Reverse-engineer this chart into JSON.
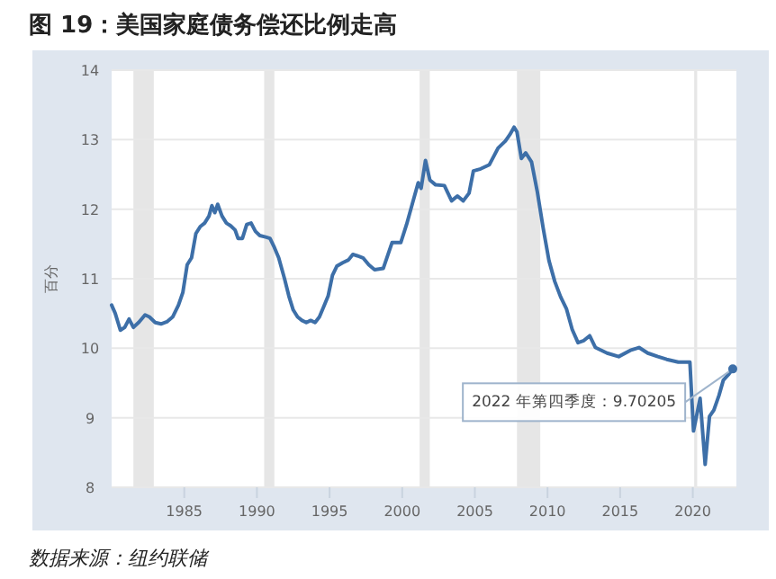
{
  "chart_data": {
    "type": "line",
    "title": "图 19：美国家庭债务偿还比例走高",
    "ylabel": "百分",
    "annotations": [
      "数据来源：纽约联储",
      {
        "text": "2022 年第四季度：9.70205",
        "x": 2022.75,
        "y": 9.70205
      }
    ],
    "xlim": [
      1980,
      2023
    ],
    "ylim": [
      8,
      14
    ],
    "xticks": [
      1985,
      1990,
      1995,
      2000,
      2005,
      2010,
      2015,
      2020
    ],
    "yticks": [
      8,
      9,
      10,
      11,
      12,
      13,
      14
    ],
    "grid": "y",
    "bands": [
      {
        "axis": "x",
        "from": 1981.5,
        "to": 1982.9,
        "color": "#e6e6e6"
      },
      {
        "axis": "x",
        "from": 1990.5,
        "to": 1991.2,
        "color": "#e6e6e6"
      },
      {
        "axis": "x",
        "from": 2001.2,
        "to": 2001.9,
        "color": "#e6e6e6"
      },
      {
        "axis": "x",
        "from": 2007.9,
        "to": 2009.5,
        "color": "#e6e6e6"
      },
      {
        "axis": "x",
        "from": 2020.1,
        "to": 2020.3,
        "color": "#e6e6e6"
      }
    ],
    "x": [
      1980.0,
      1980.25,
      1980.6,
      1980.9,
      1981.2,
      1981.5,
      1981.9,
      1982.3,
      1982.6,
      1983.0,
      1983.4,
      1983.8,
      1984.2,
      1984.6,
      1984.9,
      1985.2,
      1985.5,
      1985.8,
      1986.1,
      1986.4,
      1986.7,
      1986.9,
      1987.1,
      1987.3,
      1987.6,
      1987.9,
      1988.2,
      1988.5,
      1988.7,
      1989.0,
      1989.3,
      1989.6,
      1989.9,
      1990.2,
      1990.6,
      1990.9,
      1991.2,
      1991.5,
      1991.9,
      1992.2,
      1992.5,
      1992.8,
      1993.1,
      1993.4,
      1993.7,
      1994.0,
      1994.3,
      1994.6,
      1994.9,
      1995.2,
      1995.5,
      1995.9,
      1996.3,
      1996.6,
      1996.9,
      1997.3,
      1997.7,
      1998.1,
      1998.7,
      1999.3,
      1999.9,
      2000.3,
      2000.7,
      2001.1,
      2001.3,
      2001.6,
      2001.9,
      2002.3,
      2002.9,
      2003.4,
      2003.8,
      2004.2,
      2004.6,
      2004.9,
      2005.4,
      2006.0,
      2006.6,
      2007.1,
      2007.4,
      2007.7,
      2007.9,
      2008.2,
      2008.5,
      2008.9,
      2009.3,
      2009.7,
      2010.1,
      2010.5,
      2010.9,
      2011.3,
      2011.7,
      2012.1,
      2012.5,
      2012.9,
      2013.3,
      2014.1,
      2014.9,
      2015.7,
      2016.3,
      2016.9,
      2017.6,
      2018.2,
      2019.0,
      2019.8,
      2020.05,
      2020.5,
      2020.85,
      2021.15,
      2021.45,
      2021.8,
      2022.1,
      2022.45,
      2022.75
    ],
    "series": [
      {
        "color": "#3d6fa8",
        "values": [
          10.62,
          10.5,
          10.26,
          10.3,
          10.42,
          10.3,
          10.38,
          10.48,
          10.45,
          10.37,
          10.35,
          10.38,
          10.45,
          10.62,
          10.8,
          11.2,
          11.3,
          11.65,
          11.75,
          11.8,
          11.9,
          12.05,
          11.95,
          12.07,
          11.9,
          11.8,
          11.76,
          11.7,
          11.58,
          11.58,
          11.78,
          11.8,
          11.68,
          11.62,
          11.6,
          11.58,
          11.45,
          11.3,
          11.0,
          10.75,
          10.55,
          10.45,
          10.4,
          10.37,
          10.4,
          10.37,
          10.45,
          10.6,
          10.75,
          11.05,
          11.18,
          11.23,
          11.27,
          11.35,
          11.33,
          11.3,
          11.2,
          11.13,
          11.15,
          11.52,
          11.52,
          11.78,
          12.08,
          12.38,
          12.3,
          12.7,
          12.42,
          12.35,
          12.34,
          12.12,
          12.19,
          12.12,
          12.23,
          12.55,
          12.58,
          12.64,
          12.88,
          12.98,
          13.07,
          13.18,
          13.11,
          12.73,
          12.81,
          12.68,
          12.25,
          11.73,
          11.26,
          10.96,
          10.74,
          10.57,
          10.27,
          10.08,
          10.11,
          10.18,
          10.01,
          9.93,
          9.88,
          9.97,
          10.01,
          9.93,
          9.88,
          9.84,
          9.8,
          9.8,
          8.81,
          9.28,
          8.33,
          9.02,
          9.11,
          9.32,
          9.54,
          9.62,
          9.70205
        ]
      }
    ]
  }
}
